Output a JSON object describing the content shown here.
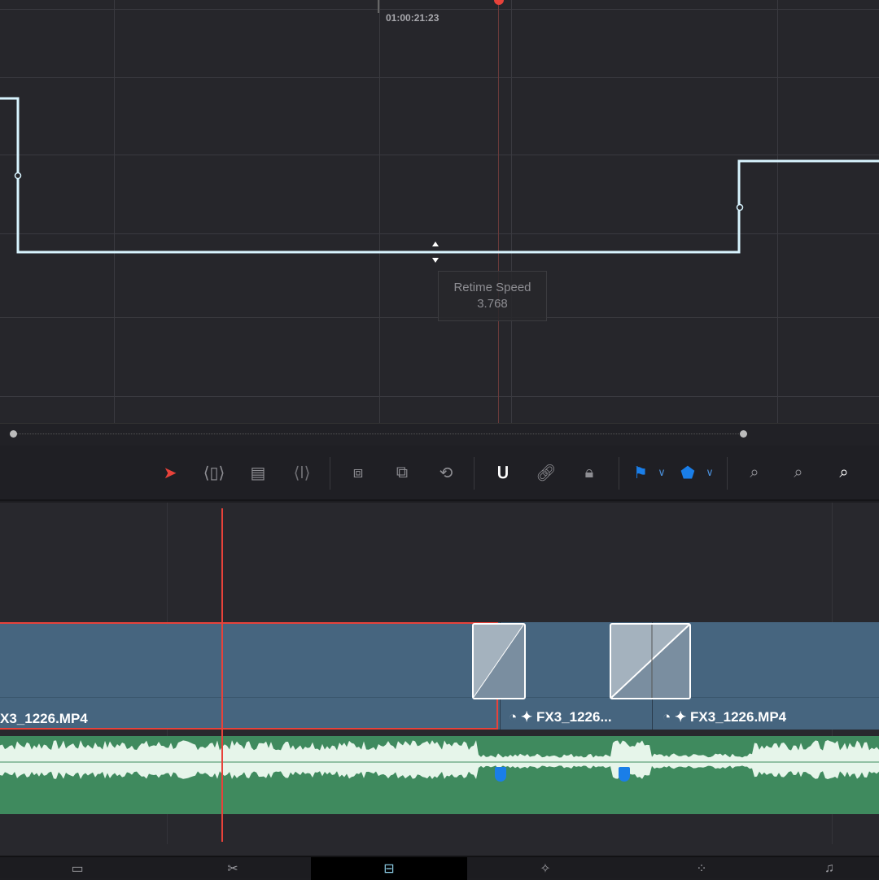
{
  "graph": {
    "timecode": "01:00:21:23",
    "tooltip": {
      "title": "Retime Speed",
      "value": "3.768"
    },
    "curve_color": "#d8f4ff",
    "playhead_color": "#e8423a"
  },
  "toolbar": {
    "tools": [
      {
        "name": "selection-tool",
        "icon": "pointer-icon",
        "active": true
      },
      {
        "name": "trim-edit-tool",
        "icon": "trim-icon"
      },
      {
        "name": "dynamic-trim-tool",
        "icon": "dynamic-trim-icon"
      },
      {
        "name": "blade-tool",
        "icon": "blade-icon"
      },
      {
        "name": "insert-clip",
        "icon": "insert-icon"
      },
      {
        "name": "overwrite-clip",
        "icon": "overwrite-icon"
      },
      {
        "name": "replace-clip",
        "icon": "replace-icon"
      },
      {
        "name": "snapping",
        "icon": "magnet-icon",
        "active": true
      },
      {
        "name": "linked-selection",
        "icon": "link-icon"
      },
      {
        "name": "position-lock",
        "icon": "lock-icon"
      },
      {
        "name": "flag",
        "icon": "flag-icon",
        "color": "#1a7ee8"
      },
      {
        "name": "marker",
        "icon": "marker-icon",
        "color": "#1a7ee8"
      },
      {
        "name": "zoom-full",
        "icon": "zoom-full-icon"
      },
      {
        "name": "zoom-detail",
        "icon": "zoom-detail-icon"
      },
      {
        "name": "zoom-custom",
        "icon": "zoom-custom-icon",
        "active": true
      }
    ]
  },
  "timeline": {
    "clips": [
      {
        "label": "X3_1226.MP4"
      },
      {
        "label": "FX3_1226..."
      },
      {
        "label": "FX3_1226.MP4"
      }
    ],
    "video_color": "#46657f",
    "audio_color": "#3f8a5e",
    "marker_color": "#1a7ee8"
  },
  "pages": [
    "media",
    "cut",
    "edit",
    "fusion",
    "color",
    "fairlight"
  ],
  "active_page": "edit"
}
